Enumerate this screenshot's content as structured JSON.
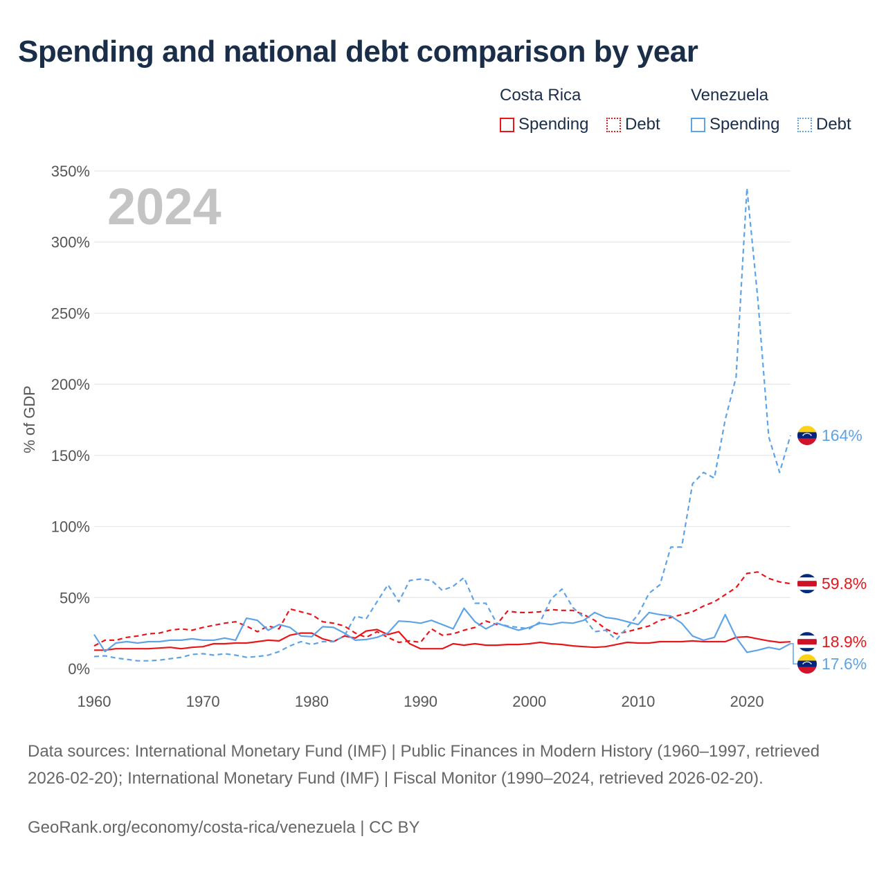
{
  "title": "Spending and national debt comparison by year",
  "legend": {
    "groups": [
      {
        "country": "Costa Rica",
        "spending_label": "Spending",
        "debt_label": "Debt",
        "color": "#e8161b"
      },
      {
        "country": "Venezuela",
        "spending_label": "Spending",
        "debt_label": "Debt",
        "color": "#5ea3e6"
      }
    ]
  },
  "colors": {
    "costa_rica": "#e8161b",
    "venezuela": "#5ea3e6",
    "grid": "#e6e6e6",
    "year_watermark": "#c4c4c4"
  },
  "icons": {
    "costa_rica_flag": "costa-rica-flag-icon",
    "venezuela_flag": "venezuela-flag-icon"
  },
  "chart_data": {
    "type": "line",
    "watermark_year": "2024",
    "ylabel": "% of GDP",
    "ylim": [
      0,
      350
    ],
    "xlim": [
      1960,
      2024
    ],
    "yticks": [
      0,
      50,
      100,
      150,
      200,
      250,
      300,
      350
    ],
    "ytick_labels": [
      "0%",
      "50%",
      "100%",
      "150%",
      "200%",
      "250%",
      "300%",
      "350%"
    ],
    "xticks": [
      1960,
      1970,
      1980,
      1990,
      2000,
      2010,
      2020
    ],
    "xtick_labels": [
      "1960",
      "1970",
      "1980",
      "1990",
      "2000",
      "2010",
      "2020"
    ],
    "x": [
      1960,
      1961,
      1962,
      1963,
      1964,
      1965,
      1966,
      1967,
      1968,
      1969,
      1970,
      1971,
      1972,
      1973,
      1974,
      1975,
      1976,
      1977,
      1978,
      1979,
      1980,
      1981,
      1982,
      1983,
      1984,
      1985,
      1986,
      1987,
      1988,
      1989,
      1990,
      1991,
      1992,
      1993,
      1994,
      1995,
      1996,
      1997,
      1998,
      1999,
      2000,
      2001,
      2002,
      2003,
      2004,
      2005,
      2006,
      2007,
      2008,
      2009,
      2010,
      2011,
      2012,
      2013,
      2014,
      2015,
      2016,
      2017,
      2018,
      2019,
      2020,
      2021,
      2022,
      2023,
      2024
    ],
    "series": [
      {
        "name": "Costa Rica Spending",
        "country": "Costa Rica",
        "measure": "Spending",
        "style": "solid",
        "end_label": "18.9%",
        "values": [
          13,
          13,
          14,
          14,
          14,
          14,
          14.5,
          15,
          14,
          15,
          15.5,
          17.5,
          17.5,
          18,
          18,
          19,
          20,
          19.5,
          23.5,
          25,
          25,
          21,
          19,
          23,
          21.5,
          26.5,
          27.5,
          24,
          26,
          17.5,
          14,
          14,
          14,
          17.5,
          16.5,
          17.5,
          16.5,
          16.5,
          17,
          17,
          17.5,
          18.5,
          17.5,
          17,
          16,
          15.5,
          15,
          15.5,
          17,
          18.5,
          18,
          18,
          19,
          19,
          19,
          19.5,
          19,
          19,
          19,
          22,
          22.5,
          21,
          19.5,
          18.5,
          18.9
        ]
      },
      {
        "name": "Costa Rica Debt",
        "country": "Costa Rica",
        "measure": "Debt",
        "style": "dashed",
        "end_label": "59.8%",
        "values": [
          16,
          20,
          20,
          22,
          23,
          24.5,
          25,
          27,
          28,
          27,
          29,
          30.5,
          32,
          33,
          30,
          26,
          30,
          28,
          42,
          40,
          38,
          33,
          32,
          30,
          25,
          22,
          26,
          22,
          18.5,
          19.5,
          18.5,
          28,
          23.5,
          24.5,
          27,
          29,
          33.5,
          31,
          40.5,
          39.5,
          39.5,
          40,
          41.5,
          41,
          41,
          38,
          34,
          28,
          24.5,
          26,
          28,
          30,
          34,
          36,
          38,
          40,
          44,
          47,
          52,
          57,
          67,
          68,
          63.5,
          61,
          59.8
        ]
      },
      {
        "name": "Venezuela Spending",
        "country": "Venezuela",
        "measure": "Spending",
        "style": "solid",
        "end_label": "17.6%",
        "values": [
          24,
          12,
          18,
          19,
          18,
          19,
          19,
          20,
          20,
          21,
          20,
          20,
          21.5,
          20,
          35.5,
          34,
          27,
          31,
          29,
          23,
          22.5,
          29.5,
          29,
          25,
          20,
          20.5,
          22,
          25,
          33.5,
          33,
          32,
          34,
          31,
          28,
          42.5,
          33,
          28,
          32,
          29.5,
          27,
          29,
          32,
          31,
          32.5,
          32,
          34,
          39.5,
          36,
          35,
          33,
          31,
          39.5,
          38,
          37,
          32,
          23,
          20,
          22,
          38,
          22,
          11.5,
          13,
          15,
          13.5,
          17.6
        ]
      },
      {
        "name": "Venezuela Debt",
        "country": "Venezuela",
        "measure": "Debt",
        "style": "dashed",
        "end_label": "164%",
        "values": [
          8.5,
          9,
          7.5,
          6.5,
          5.5,
          5.5,
          6,
          7,
          8,
          10,
          10.5,
          9.5,
          10.5,
          9.5,
          8,
          8.5,
          9.5,
          12,
          16,
          19,
          17,
          19,
          19,
          23,
          37,
          35,
          47,
          59,
          47,
          62,
          63,
          62,
          55,
          58,
          64,
          46,
          46,
          32,
          30,
          29,
          28,
          33,
          49,
          56,
          43,
          36,
          26,
          27,
          20.5,
          29,
          38,
          53,
          59,
          85.5,
          85.5,
          130,
          138,
          134,
          175,
          205,
          338,
          260,
          163,
          138,
          164
        ]
      }
    ]
  },
  "footer": {
    "sources": "Data sources: International Monetary Fund (IMF) | Public Finances in Modern History (1960–1997, retrieved 2026-02-20); International Monetary Fund (IMF) | Fiscal Monitor (1990–2024, retrieved 2026-02-20).",
    "credit": "GeoRank.org/economy/costa-rica/venezuela | CC BY"
  }
}
